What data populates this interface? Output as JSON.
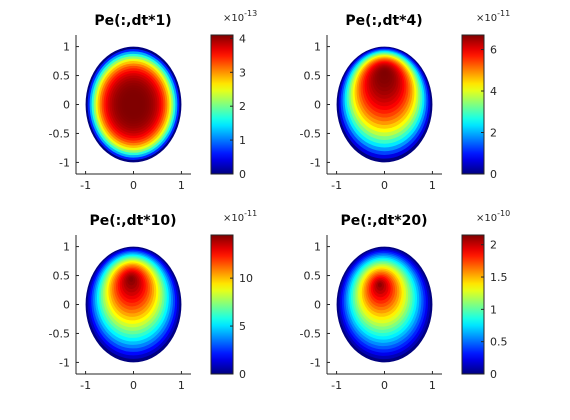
{
  "chart_data": [
    {
      "type": "heatmap",
      "title": "Pe(:,dt*1)",
      "xlim": [
        -1.2,
        1.2
      ],
      "ylim": [
        -1.2,
        1.2
      ],
      "xticks": [
        -1,
        0,
        1
      ],
      "yticks": [
        1,
        0.5,
        0,
        -0.5,
        -1
      ],
      "ytick_labels": [
        "1",
        "0.5",
        "0",
        "-0.5",
        "-1"
      ],
      "colorbar": {
        "min": 0,
        "max": 4.1,
        "ticks": [
          0,
          1,
          2,
          3,
          4
        ],
        "tick_labels": [
          "0",
          "1",
          "2",
          "3",
          "4"
        ],
        "exp_base": "×10",
        "exp_power": "-13"
      },
      "field": {
        "peak_center": [
          0,
          0
        ],
        "peak_value": 4.1,
        "sharpness": 4
      }
    },
    {
      "type": "heatmap",
      "title": "Pe(:,dt*4)",
      "xlim": [
        -1.2,
        1.2
      ],
      "ylim": [
        -1.2,
        1.2
      ],
      "xticks": [
        -1,
        0,
        1
      ],
      "yticks": [
        1,
        0.5,
        0,
        -0.5,
        -1
      ],
      "ytick_labels": [
        "1",
        "0.5",
        "0",
        "-0.5",
        "-1"
      ],
      "colorbar": {
        "min": 0,
        "max": 6.7,
        "ticks": [
          0,
          2,
          4,
          6
        ],
        "tick_labels": [
          "0",
          "2",
          "4",
          "6"
        ],
        "exp_base": "×10",
        "exp_power": "-11"
      },
      "field": {
        "peak_center": [
          0,
          0.55
        ],
        "peak_value": 6.7,
        "sharpness": 2.4
      }
    },
    {
      "type": "heatmap",
      "title": "Pe(:,dt*10)",
      "xlim": [
        -1.2,
        1.2
      ],
      "ylim": [
        -1.2,
        1.2
      ],
      "xticks": [
        -1,
        0,
        1
      ],
      "yticks": [
        1,
        0.5,
        0,
        -0.5,
        -1
      ],
      "ytick_labels": [
        "1",
        "0.5",
        "0",
        "-0.5",
        "-1"
      ],
      "colorbar": {
        "min": 0,
        "max": 14.5,
        "ticks": [
          0,
          5,
          10
        ],
        "tick_labels": [
          "0",
          "5",
          "10"
        ],
        "exp_base": "×10",
        "exp_power": "-11"
      },
      "field": {
        "peak_center": [
          -0.05,
          0.45
        ],
        "peak_value": 14.5,
        "sharpness": 1.6
      }
    },
    {
      "type": "heatmap",
      "title": "Pe(:,dt*20)",
      "xlim": [
        -1.2,
        1.2
      ],
      "ylim": [
        -1.2,
        1.2
      ],
      "xticks": [
        -1,
        0,
        1
      ],
      "yticks": [
        1,
        0.5,
        0,
        -0.5,
        -1
      ],
      "ytick_labels": [
        "1",
        "0.5",
        "0",
        "-0.5",
        "-1"
      ],
      "colorbar": {
        "min": 0,
        "max": 2.15,
        "ticks": [
          0,
          0.5,
          1,
          1.5,
          2
        ],
        "tick_labels": [
          "0",
          "0.5",
          "1",
          "1.5",
          "2"
        ],
        "exp_base": "×10",
        "exp_power": "-10"
      },
      "field": {
        "peak_center": [
          -0.1,
          0.35
        ],
        "peak_value": 2.15,
        "sharpness": 1.3
      }
    }
  ]
}
